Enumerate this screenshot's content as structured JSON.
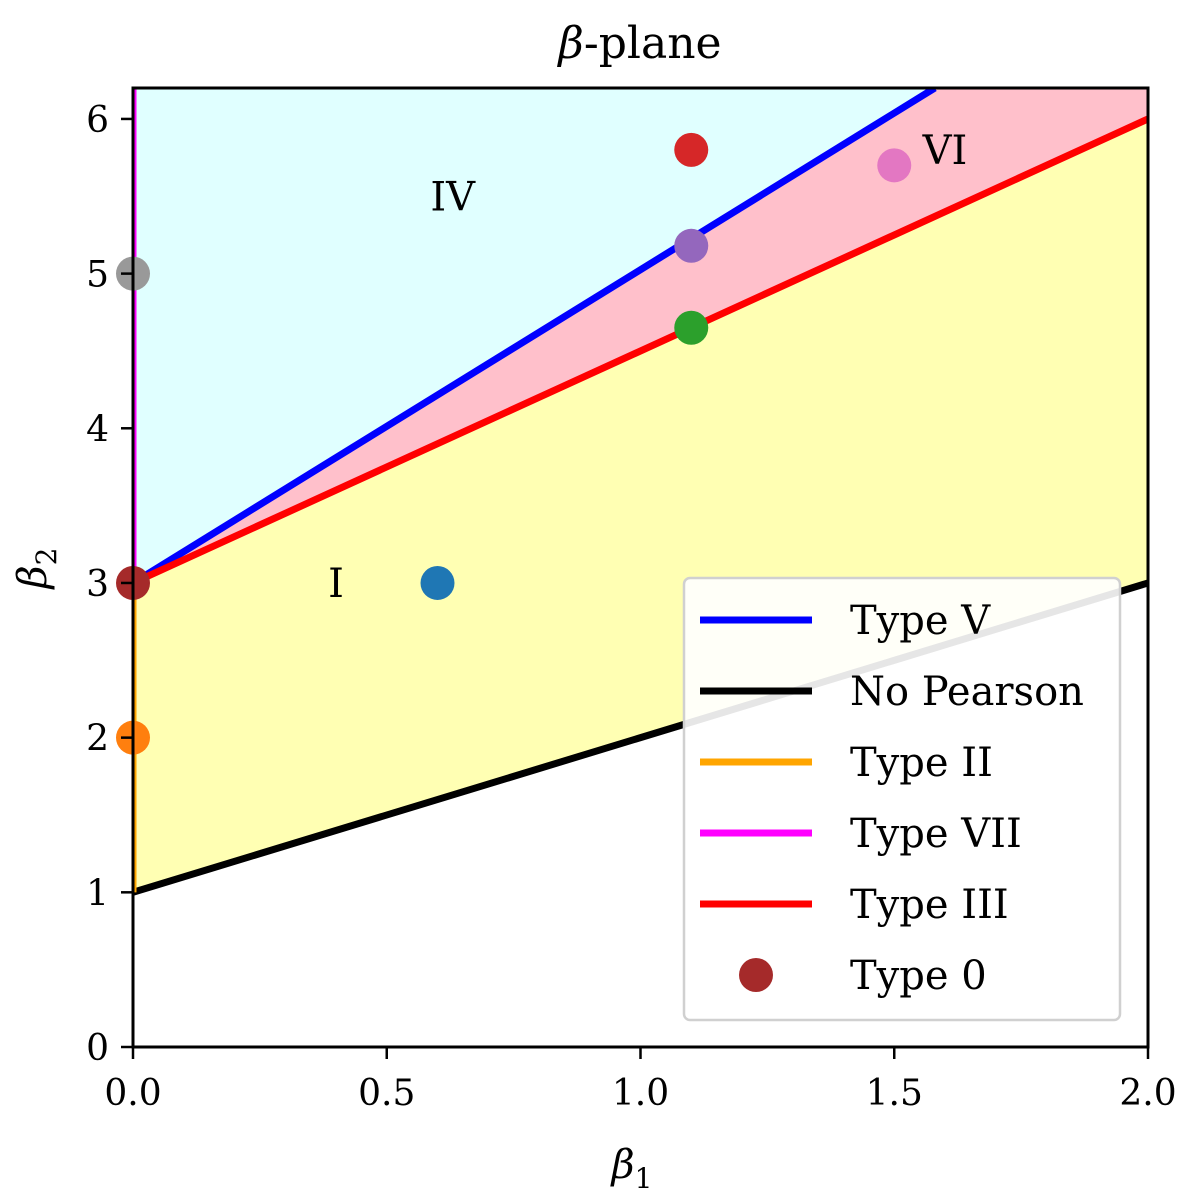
{
  "chart_data": {
    "type": "line",
    "title": "β-plane",
    "title_symbol": "β",
    "title_suffix": "-plane",
    "xlabel": "β",
    "xlabel_sub": "1",
    "ylabel": "β",
    "ylabel_sub": "2",
    "xlim": [
      0,
      2.0
    ],
    "ylim": [
      0,
      6.2
    ],
    "x_ticks": [
      {
        "value": 0.0,
        "label": "0.0"
      },
      {
        "value": 0.5,
        "label": "0.5"
      },
      {
        "value": 1.0,
        "label": "1.0"
      },
      {
        "value": 1.5,
        "label": "1.5"
      },
      {
        "value": 2.0,
        "label": "2.0"
      }
    ],
    "y_ticks": [
      {
        "value": 0,
        "label": "0"
      },
      {
        "value": 1,
        "label": "1"
      },
      {
        "value": 2,
        "label": "2"
      },
      {
        "value": 3,
        "label": "3"
      },
      {
        "value": 4,
        "label": "4"
      },
      {
        "value": 5,
        "label": "5"
      },
      {
        "value": 6,
        "label": "6"
      }
    ],
    "grid": false,
    "legend_position": "lower-right",
    "regions": [
      {
        "key": "iv",
        "color": "#e0ffff",
        "points": [
          [
            0,
            3
          ],
          [
            0,
            6.2
          ],
          [
            1.58,
            6.2
          ]
        ]
      },
      {
        "key": "vi",
        "color": "#ffc0cb",
        "points": [
          [
            0,
            3
          ],
          [
            1.58,
            6.2
          ],
          [
            2.0,
            6.2
          ],
          [
            2.0,
            6.0
          ]
        ]
      },
      {
        "key": "i",
        "color": "#ffffb3",
        "points": [
          [
            0,
            1
          ],
          [
            0,
            3
          ],
          [
            2.0,
            6.0
          ],
          [
            2.0,
            3.0
          ]
        ]
      }
    ],
    "series": [
      {
        "key": "type_v",
        "name": "Type V",
        "color": "#0000ff",
        "points": [
          [
            0,
            3
          ],
          [
            1.58,
            6.2
          ]
        ]
      },
      {
        "key": "no_pearson",
        "name": "No Pearson",
        "color": "#000000",
        "points": [
          [
            0,
            1
          ],
          [
            2.0,
            3.0
          ]
        ]
      },
      {
        "key": "type_ii",
        "name": "Type II",
        "color": "#ffa500",
        "points": [
          [
            0,
            1
          ],
          [
            0,
            3
          ]
        ]
      },
      {
        "key": "type_vii",
        "name": "Type VII",
        "color": "#ff00ff",
        "points": [
          [
            0,
            3
          ],
          [
            0,
            6.2
          ]
        ]
      },
      {
        "key": "type_iii",
        "name": "Type III",
        "color": "#ff0000",
        "points": [
          [
            0,
            3
          ],
          [
            2.0,
            6.0
          ]
        ]
      }
    ],
    "scatter": [
      {
        "key": "gray",
        "x": 0.0,
        "y": 5.0,
        "color": "#999999"
      },
      {
        "key": "orange",
        "x": 0.0,
        "y": 2.0,
        "color": "#ff7f0e"
      },
      {
        "key": "blue",
        "x": 0.6,
        "y": 3.0,
        "color": "#1f77b4"
      },
      {
        "key": "red",
        "x": 1.1,
        "y": 5.8,
        "color": "#d62728"
      },
      {
        "key": "purple",
        "x": 1.1,
        "y": 5.18,
        "color": "#9467bd"
      },
      {
        "key": "green",
        "x": 1.1,
        "y": 4.65,
        "color": "#2ca02c"
      },
      {
        "key": "pink",
        "x": 1.5,
        "y": 5.7,
        "color": "#e377c2"
      },
      {
        "key": "type0",
        "name": "Type 0",
        "x": 0.0,
        "y": 3.0,
        "color": "#a52a2a"
      }
    ],
    "annotations": [
      {
        "key": "iv",
        "text": "IV",
        "x": 0.63,
        "y": 5.5
      },
      {
        "key": "vi",
        "text": "VI",
        "x": 1.6,
        "y": 5.8
      },
      {
        "key": "i",
        "text": "I",
        "x": 0.4,
        "y": 3.0
      }
    ],
    "legend": [
      {
        "key": "type_v",
        "label": "Type V",
        "kind": "line",
        "color": "#0000ff"
      },
      {
        "key": "no_pearson",
        "label": "No Pearson",
        "kind": "line",
        "color": "#000000"
      },
      {
        "key": "type_ii",
        "label": "Type II",
        "kind": "line",
        "color": "#ffa500"
      },
      {
        "key": "type_vii",
        "label": "Type VII",
        "kind": "line",
        "color": "#ff00ff"
      },
      {
        "key": "type_iii",
        "label": "Type III",
        "kind": "line",
        "color": "#ff0000"
      },
      {
        "key": "type0",
        "label": "Type 0",
        "kind": "marker",
        "color": "#a52a2a"
      }
    ]
  }
}
